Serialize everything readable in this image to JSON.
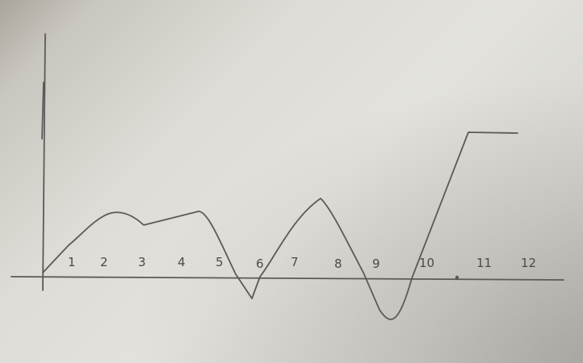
{
  "sketch": {
    "x_labels": [
      "1",
      "2",
      "3",
      "4",
      "5",
      "6",
      "7",
      "8",
      "9",
      "10",
      "11",
      "12"
    ]
  }
}
